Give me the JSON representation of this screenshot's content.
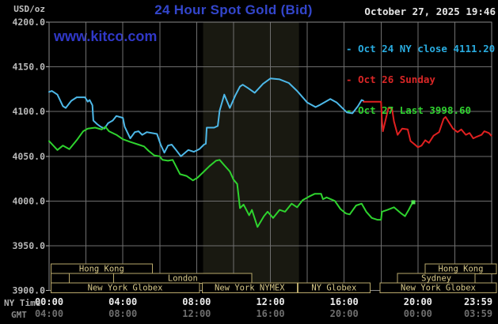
{
  "header": {
    "units_label": "USD/oz",
    "title": "24 Hour Spot Gold (Bid)",
    "datetime": "October 27, 2025 19:46"
  },
  "watermark": "www.kitco.com",
  "legend": {
    "dash": "- ",
    "items": [
      {
        "text": "Oct 24 NY close 4111.20",
        "color": "#29abdf"
      },
      {
        "text": "Oct 26 Sunday",
        "color": "#d92626"
      },
      {
        "text": "Oct 27 Last 3998.60",
        "color": "#2fd12f"
      }
    ]
  },
  "colors": {
    "background": "#000000",
    "title": "#3346cc",
    "watermark": "#3038c8",
    "date_text": "#e6e6e6",
    "grid": "#6f6f6f",
    "plot_border": "#8a8a8a",
    "shade_band": "#191911",
    "axis_label": "#b8b8b8",
    "units_label": "#c0c0c0",
    "time_label_ny": "#ececec",
    "time_label_gmt": "#6e6e6e",
    "axis_header_ny": "#b0b0b0",
    "axis_header_gmt": "#8a8a8a",
    "session_border": "#b9a96b",
    "session_text": "#d8c98a"
  },
  "axes": {
    "ny_header": "NY Time",
    "gmt_header": "GMT",
    "y_ticks": [
      {
        "label": "4200.0",
        "value": 4200
      },
      {
        "label": "4150.0",
        "value": 4150
      },
      {
        "label": "4100.0",
        "value": 4100
      },
      {
        "label": "4050.0",
        "value": 4050
      },
      {
        "label": "4000.0",
        "value": 4000
      },
      {
        "label": "3950.0",
        "value": 3950
      },
      {
        "label": "3900.0",
        "value": 3900
      }
    ],
    "x_ticks_ny": [
      {
        "label": "00:00",
        "hour": 0
      },
      {
        "label": "04:00",
        "hour": 4
      },
      {
        "label": "08:00",
        "hour": 8
      },
      {
        "label": "12:00",
        "hour": 12
      },
      {
        "label": "16:00",
        "hour": 16
      },
      {
        "label": "20:00",
        "hour": 20
      },
      {
        "label": "23:59",
        "hour": 24
      }
    ],
    "x_ticks_gmt": [
      {
        "label": "04:00",
        "hour": 0
      },
      {
        "label": "08:00",
        "hour": 4
      },
      {
        "label": "12:00",
        "hour": 8
      },
      {
        "label": "16:00",
        "hour": 12
      },
      {
        "label": "20:00",
        "hour": 16
      },
      {
        "label": "00:00",
        "hour": 20
      },
      {
        "label": "03:59",
        "hour": 24
      }
    ]
  },
  "sessions": {
    "rows": [
      {
        "boxes": [
          {
            "label": "Hong Kong",
            "start_hour": 0.1,
            "end_hour": 5.6
          },
          {
            "label": "Hong Kong",
            "start_hour": 20.4,
            "end_hour": 24.25
          }
        ]
      },
      {
        "boxes": [
          {
            "label": "",
            "start_hour": 0.1,
            "end_hour": 1.1
          },
          {
            "label": "",
            "start_hour": 1.1,
            "end_hour": 3.5
          },
          {
            "label": "London",
            "start_hour": 3.5,
            "end_hour": 11.0
          },
          {
            "label": "Sydney",
            "start_hour": 18.9,
            "end_hour": 23.1
          }
        ]
      },
      {
        "boxes": [
          {
            "label": "New York Globex",
            "start_hour": 0.1,
            "end_hour": 8.15
          },
          {
            "label": "New York NYMEX",
            "start_hour": 8.3,
            "end_hour": 13.45
          },
          {
            "label": "NY Globex",
            "start_hour": 13.5,
            "end_hour": 17.4
          },
          {
            "label": "New York Globex",
            "start_hour": 17.95,
            "end_hour": 24.25
          }
        ]
      }
    ]
  },
  "chart_data": {
    "type": "line",
    "title": "24 Hour Spot Gold (Bid)",
    "xlabel": "NY Time (hours 00:00-23:59)",
    "ylabel": "USD/oz",
    "x_range_hours": [
      0,
      24
    ],
    "ylim": [
      3900,
      4200
    ],
    "y_tick_step": 50,
    "grid": true,
    "legend_position": "top-right",
    "shaded_band_hours": [
      8.35,
      13.55
    ],
    "series": [
      {
        "name": "Oct 24 NY close 4111.20",
        "color": "#4db8e8",
        "close_value": 4111.2,
        "points": [
          [
            0.0,
            4122
          ],
          [
            0.15,
            4123
          ],
          [
            0.45,
            4119
          ],
          [
            0.75,
            4106
          ],
          [
            0.9,
            4104
          ],
          [
            1.2,
            4112
          ],
          [
            1.5,
            4116
          ],
          [
            1.95,
            4116
          ],
          [
            2.1,
            4111
          ],
          [
            2.2,
            4113
          ],
          [
            2.35,
            4107
          ],
          [
            2.4,
            4090
          ],
          [
            2.6,
            4086
          ],
          [
            2.8,
            4083
          ],
          [
            3.0,
            4081
          ],
          [
            3.2,
            4087
          ],
          [
            3.45,
            4090
          ],
          [
            3.65,
            4095
          ],
          [
            4.0,
            4093
          ],
          [
            4.1,
            4083
          ],
          [
            4.4,
            4070
          ],
          [
            4.65,
            4077
          ],
          [
            4.85,
            4078
          ],
          [
            5.05,
            4074
          ],
          [
            5.3,
            4077
          ],
          [
            5.85,
            4075
          ],
          [
            6.05,
            4063
          ],
          [
            6.25,
            4054
          ],
          [
            6.45,
            4062
          ],
          [
            6.65,
            4063
          ],
          [
            6.85,
            4058
          ],
          [
            7.15,
            4050
          ],
          [
            7.55,
            4057
          ],
          [
            7.85,
            4055
          ],
          [
            8.15,
            4058
          ],
          [
            8.4,
            4063
          ],
          [
            8.5,
            4064
          ],
          [
            8.55,
            4082
          ],
          [
            8.95,
            4082
          ],
          [
            9.15,
            4084
          ],
          [
            9.25,
            4101
          ],
          [
            9.5,
            4119
          ],
          [
            9.8,
            4104
          ],
          [
            10.1,
            4118
          ],
          [
            10.35,
            4128
          ],
          [
            10.5,
            4130
          ],
          [
            10.8,
            4126
          ],
          [
            11.15,
            4121
          ],
          [
            11.6,
            4131
          ],
          [
            12.0,
            4137
          ],
          [
            12.5,
            4136
          ],
          [
            13.0,
            4132
          ],
          [
            13.45,
            4123
          ],
          [
            14.0,
            4110
          ],
          [
            14.45,
            4105
          ],
          [
            14.65,
            4107
          ],
          [
            15.25,
            4114
          ],
          [
            15.6,
            4110
          ],
          [
            16.15,
            4099
          ],
          [
            16.45,
            4098
          ],
          [
            16.75,
            4106
          ],
          [
            16.95,
            4113
          ],
          [
            17.05,
            4112
          ]
        ]
      },
      {
        "name": "Oct 26 Sunday",
        "color": "#e02020",
        "points": [
          [
            17.05,
            4111
          ],
          [
            18.0,
            4111
          ],
          [
            18.05,
            4090
          ],
          [
            18.1,
            4078
          ],
          [
            18.4,
            4104
          ],
          [
            18.6,
            4103
          ],
          [
            18.7,
            4089
          ],
          [
            18.9,
            4074
          ],
          [
            19.15,
            4081
          ],
          [
            19.45,
            4080
          ],
          [
            19.6,
            4067
          ],
          [
            19.9,
            4062
          ],
          [
            20.0,
            4060
          ],
          [
            20.2,
            4062
          ],
          [
            20.4,
            4068
          ],
          [
            20.6,
            4065
          ],
          [
            20.85,
            4073
          ],
          [
            21.15,
            4077
          ],
          [
            21.4,
            4092
          ],
          [
            21.5,
            4094
          ],
          [
            21.9,
            4081
          ],
          [
            22.15,
            4077
          ],
          [
            22.35,
            4080
          ],
          [
            22.6,
            4074
          ],
          [
            22.8,
            4076
          ],
          [
            23.0,
            4070
          ],
          [
            23.2,
            4072
          ],
          [
            23.45,
            4074
          ],
          [
            23.6,
            4078
          ],
          [
            23.85,
            4076
          ],
          [
            23.98,
            4073
          ]
        ]
      },
      {
        "name": "Oct 27 Last 3998.60",
        "color": "#2ed32e",
        "last_value": 3998.6,
        "end_marker": true,
        "points": [
          [
            0.0,
            4067
          ],
          [
            0.45,
            4057
          ],
          [
            0.75,
            4062
          ],
          [
            1.1,
            4058
          ],
          [
            1.5,
            4068
          ],
          [
            1.85,
            4078
          ],
          [
            2.1,
            4081
          ],
          [
            2.5,
            4082
          ],
          [
            2.85,
            4080
          ],
          [
            3.05,
            4083
          ],
          [
            3.25,
            4078
          ],
          [
            3.65,
            4074
          ],
          [
            4.0,
            4069
          ],
          [
            4.4,
            4066
          ],
          [
            4.85,
            4063
          ],
          [
            5.15,
            4061
          ],
          [
            5.4,
            4056
          ],
          [
            5.7,
            4051
          ],
          [
            6.0,
            4050
          ],
          [
            6.15,
            4046
          ],
          [
            6.45,
            4045
          ],
          [
            6.7,
            4046
          ],
          [
            7.1,
            4030
          ],
          [
            7.45,
            4028
          ],
          [
            7.8,
            4023
          ],
          [
            8.05,
            4026
          ],
          [
            8.4,
            4033
          ],
          [
            8.7,
            4039
          ],
          [
            9.05,
            4045
          ],
          [
            9.25,
            4046
          ],
          [
            9.5,
            4040
          ],
          [
            9.8,
            4033
          ],
          [
            10.0,
            4024
          ],
          [
            10.2,
            4019
          ],
          [
            10.35,
            3992
          ],
          [
            10.55,
            3996
          ],
          [
            10.85,
            3984
          ],
          [
            11.0,
            3990
          ],
          [
            11.3,
            3971
          ],
          [
            11.65,
            3983
          ],
          [
            11.85,
            3988
          ],
          [
            12.15,
            3981
          ],
          [
            12.5,
            3990
          ],
          [
            12.8,
            3988
          ],
          [
            13.15,
            3997
          ],
          [
            13.45,
            3993
          ],
          [
            13.75,
            4001
          ],
          [
            14.1,
            4005
          ],
          [
            14.4,
            4008
          ],
          [
            14.75,
            4008
          ],
          [
            14.85,
            4002
          ],
          [
            15.05,
            4004
          ],
          [
            15.5,
            4000
          ],
          [
            15.8,
            3991
          ],
          [
            16.1,
            3986
          ],
          [
            16.3,
            3985
          ],
          [
            16.65,
            3995
          ],
          [
            16.95,
            3997
          ],
          [
            17.2,
            3988
          ],
          [
            17.5,
            3981
          ],
          [
            17.8,
            3979
          ],
          [
            18.0,
            3979
          ],
          [
            18.05,
            3988
          ],
          [
            18.35,
            3990
          ],
          [
            18.7,
            3993
          ],
          [
            19.1,
            3986
          ],
          [
            19.3,
            3983
          ],
          [
            19.5,
            3990
          ],
          [
            19.65,
            3996
          ],
          [
            19.75,
            3998.6
          ]
        ]
      }
    ]
  }
}
